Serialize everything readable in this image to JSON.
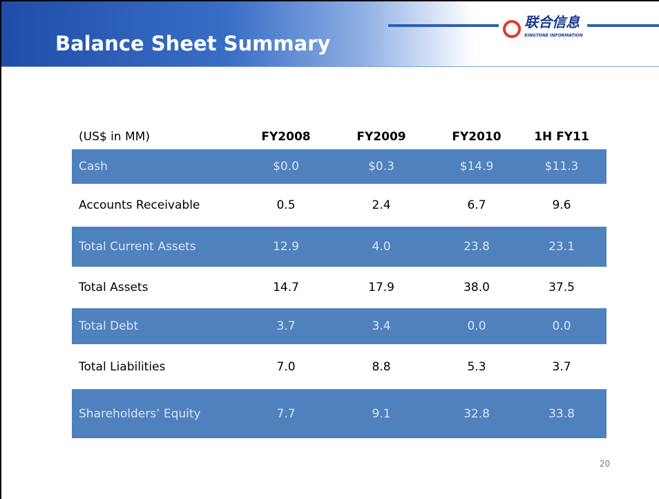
{
  "header": {
    "title": "Balance Sheet Summary",
    "logo_text": "联合信息",
    "logo_subtext": "KINGTONE INFORMATION"
  },
  "table": {
    "header": [
      "(US$ in MM)",
      "FY2008",
      "FY2009",
      "FY2010",
      "1H FY11"
    ],
    "rows": [
      [
        "Cash",
        "$0.0",
        "$0.3",
        "$14.9",
        "$11.3"
      ],
      [
        "Accounts Receivable",
        "0.5",
        "2.4",
        "6.7",
        "9.6"
      ],
      [
        "Total Current Assets",
        "12.9",
        "4.0",
        "23.8",
        "23.1"
      ],
      [
        "Total Assets",
        "14.7",
        "17.9",
        "38.0",
        "37.5"
      ],
      [
        "Total Debt",
        "3.7",
        "3.4",
        "0.0",
        "0.0"
      ],
      [
        "Total Liabilities",
        "7.0",
        "8.8",
        "5.3",
        "3.7"
      ],
      [
        "Shareholders’ Equity",
        "7.7",
        "9.1",
        "32.8",
        "33.8"
      ]
    ]
  },
  "footer": {
    "page_number": "20"
  }
}
